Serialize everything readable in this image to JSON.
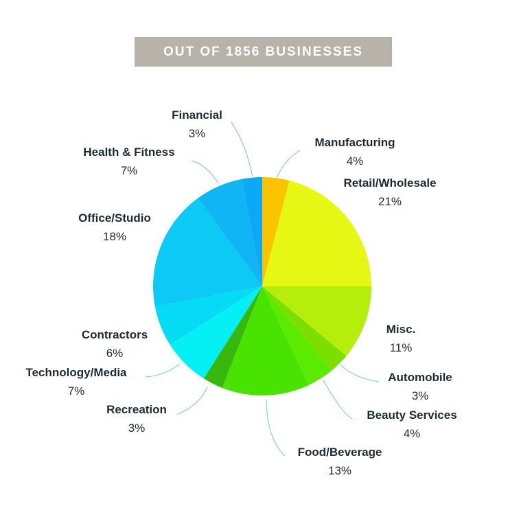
{
  "chart_data": {
    "type": "pie",
    "title": "OUT OF 1856 BUSINESSES",
    "slices": [
      {
        "label": "Manufacturing",
        "value": 4,
        "display": "4%",
        "color": "#fbc300"
      },
      {
        "label": "Retail/Wholesale",
        "value": 21,
        "display": "21%",
        "color": "#e6f714"
      },
      {
        "label": "Misc.",
        "value": 11,
        "display": "11%",
        "color": "#b4ee0a"
      },
      {
        "label": "Automobile",
        "value": 3,
        "display": "3%",
        "color": "#7ddf00"
      },
      {
        "label": "Beauty Services",
        "value": 4,
        "display": "4%",
        "color": "#5cea00"
      },
      {
        "label": "Food/Beverage",
        "value": 13,
        "display": "13%",
        "color": "#48e400"
      },
      {
        "label": "Recreation",
        "value": 3,
        "display": "3%",
        "color": "#38b70e"
      },
      {
        "label": "Technology/Media",
        "value": 7,
        "display": "7%",
        "color": "#04f0f4"
      },
      {
        "label": "Contractors",
        "value": 6,
        "display": "6%",
        "color": "#06dbf6"
      },
      {
        "label": "Office/Studio",
        "value": 18,
        "display": "18%",
        "color": "#0cc9f6"
      },
      {
        "label": "Health & Fitness",
        "value": 7,
        "display": "7%",
        "color": "#0fb5f5"
      },
      {
        "label": "Financial",
        "value": 3,
        "display": "3%",
        "color": "#0aa8f5"
      }
    ]
  },
  "colors": {
    "leader_line": "#8ccbe9",
    "banner_bg": "#b7b3ab",
    "label_text": "#1e2a33"
  }
}
